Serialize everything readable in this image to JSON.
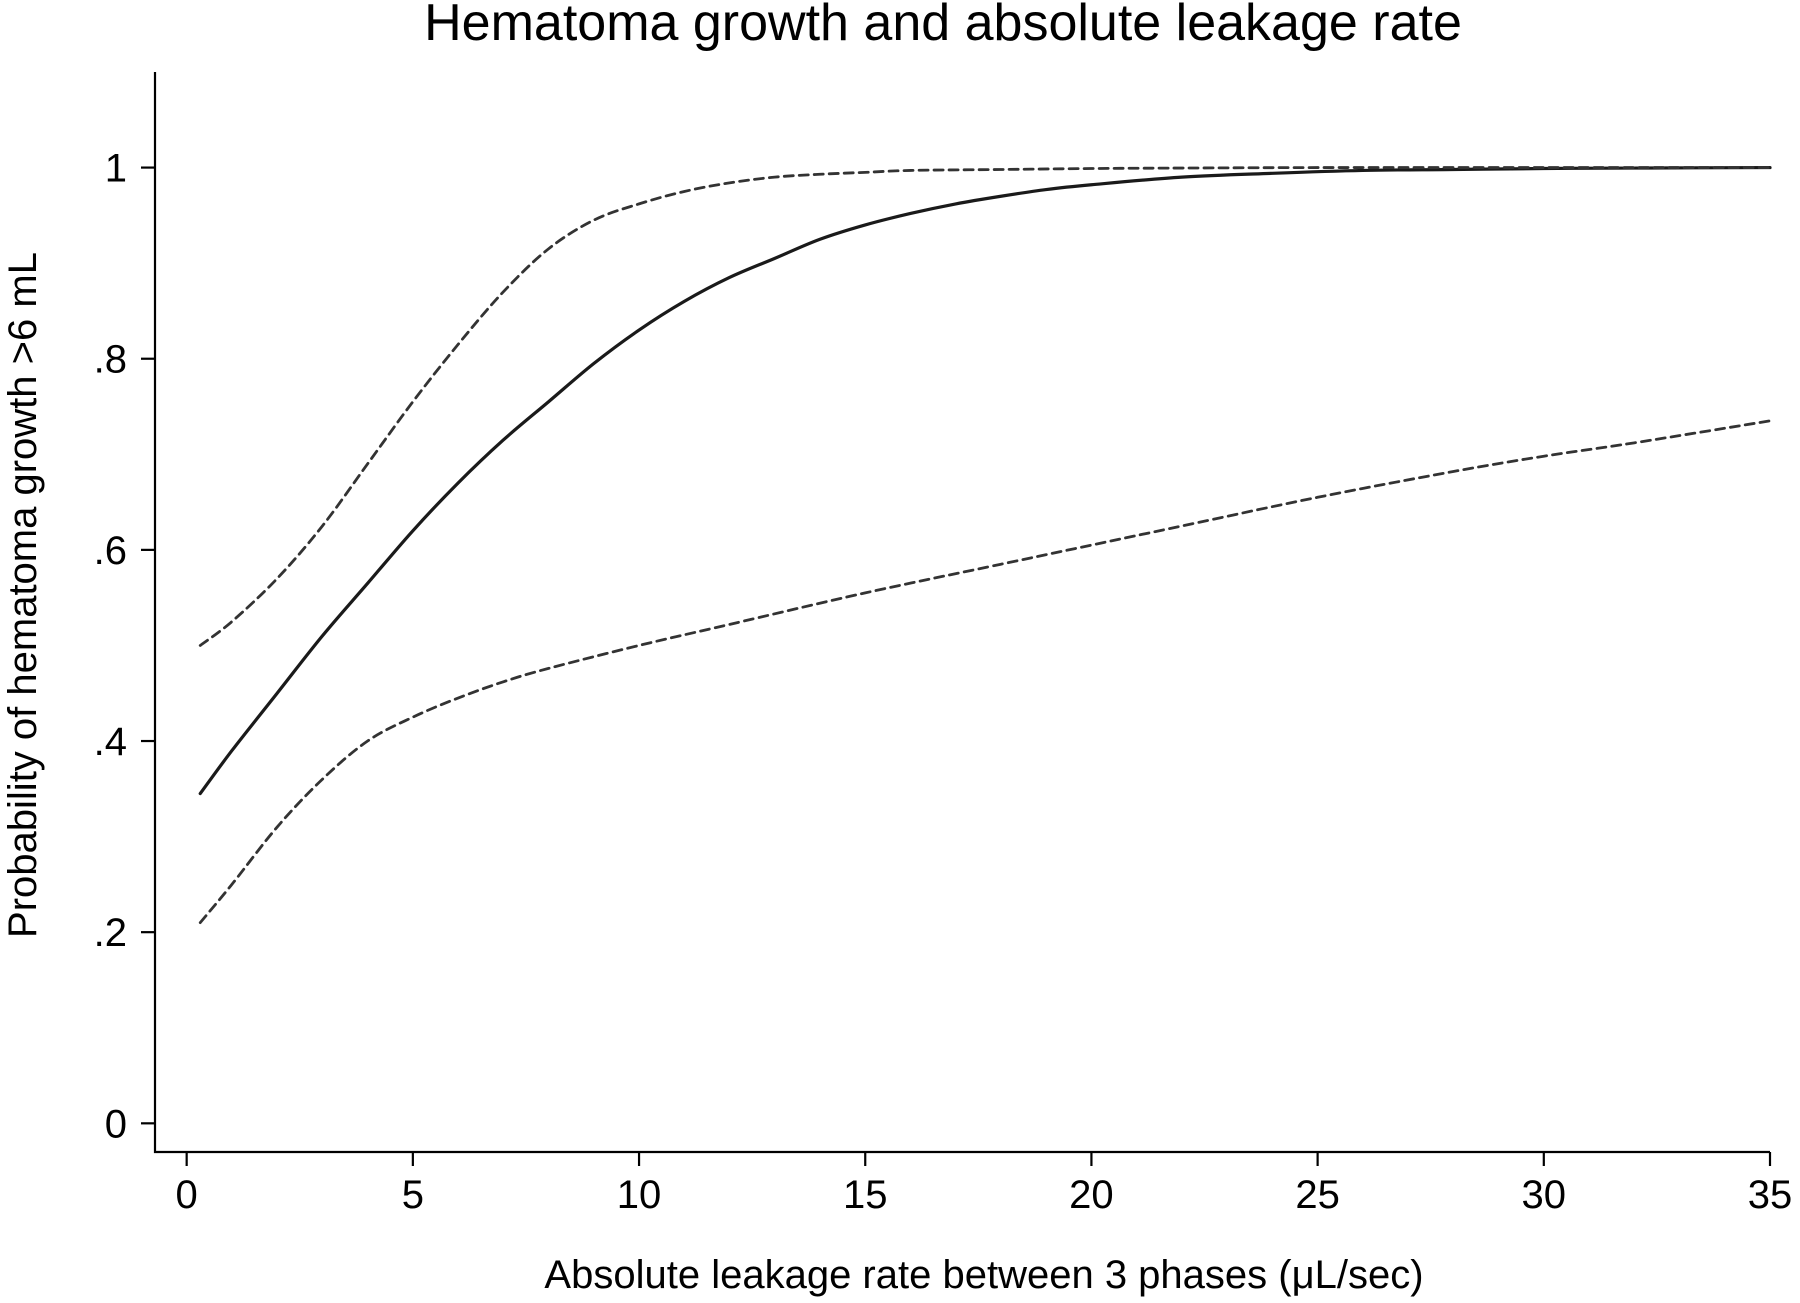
{
  "chart_data": {
    "type": "line",
    "title": "Hematoma growth and absolute leakage rate",
    "xlabel": "Absolute leakage rate between 3 phases (μL/sec)",
    "ylabel": "Probability of hematoma growth >6 mL",
    "xlim": [
      -0.7,
      35
    ],
    "ylim": [
      -0.03,
      1.1
    ],
    "xticks": [
      0,
      5,
      10,
      15,
      20,
      25,
      30,
      35
    ],
    "xtick_labels": [
      "0",
      "5",
      "10",
      "15",
      "20",
      "25",
      "30",
      "35"
    ],
    "yticks": [
      0,
      0.2,
      0.4,
      0.6,
      0.8,
      1.0
    ],
    "ytick_labels": [
      "0",
      ".2",
      ".4",
      ".6",
      ".8",
      "1"
    ],
    "grid": false,
    "legend": "none",
    "series": [
      {
        "style": "solid",
        "color": "#1a1a1a",
        "x": [
          0.3,
          1,
          2,
          3,
          4,
          5,
          6,
          7,
          8,
          9,
          10,
          11,
          12,
          13,
          14,
          15,
          16,
          17,
          18,
          19,
          20,
          22,
          24,
          26,
          28,
          30,
          32,
          35
        ],
        "y": [
          0.345,
          0.39,
          0.45,
          0.51,
          0.565,
          0.62,
          0.67,
          0.715,
          0.755,
          0.795,
          0.83,
          0.86,
          0.885,
          0.905,
          0.925,
          0.94,
          0.952,
          0.962,
          0.97,
          0.977,
          0.982,
          0.99,
          0.994,
          0.997,
          0.998,
          0.999,
          0.9995,
          1.0
        ]
      },
      {
        "style": "dashed",
        "color": "#333333",
        "x": [
          0.3,
          1,
          2,
          3,
          4,
          5,
          6,
          7,
          8,
          9,
          10,
          11,
          12,
          13,
          14,
          15,
          16,
          18,
          20,
          22,
          25,
          30,
          35
        ],
        "y": [
          0.5,
          0.525,
          0.57,
          0.625,
          0.69,
          0.755,
          0.815,
          0.87,
          0.915,
          0.945,
          0.962,
          0.975,
          0.984,
          0.99,
          0.993,
          0.995,
          0.997,
          0.998,
          0.999,
          0.9995,
          1.0,
          1.0,
          1.0
        ]
      },
      {
        "style": "dashed",
        "color": "#333333",
        "x": [
          0.3,
          1,
          2,
          3,
          4,
          5,
          6,
          7,
          8,
          10,
          12,
          15,
          18,
          20,
          22,
          25,
          28,
          30,
          32,
          35
        ],
        "y": [
          0.21,
          0.25,
          0.31,
          0.36,
          0.4,
          0.425,
          0.445,
          0.462,
          0.476,
          0.5,
          0.522,
          0.555,
          0.585,
          0.605,
          0.625,
          0.655,
          0.682,
          0.698,
          0.712,
          0.735
        ]
      }
    ]
  }
}
